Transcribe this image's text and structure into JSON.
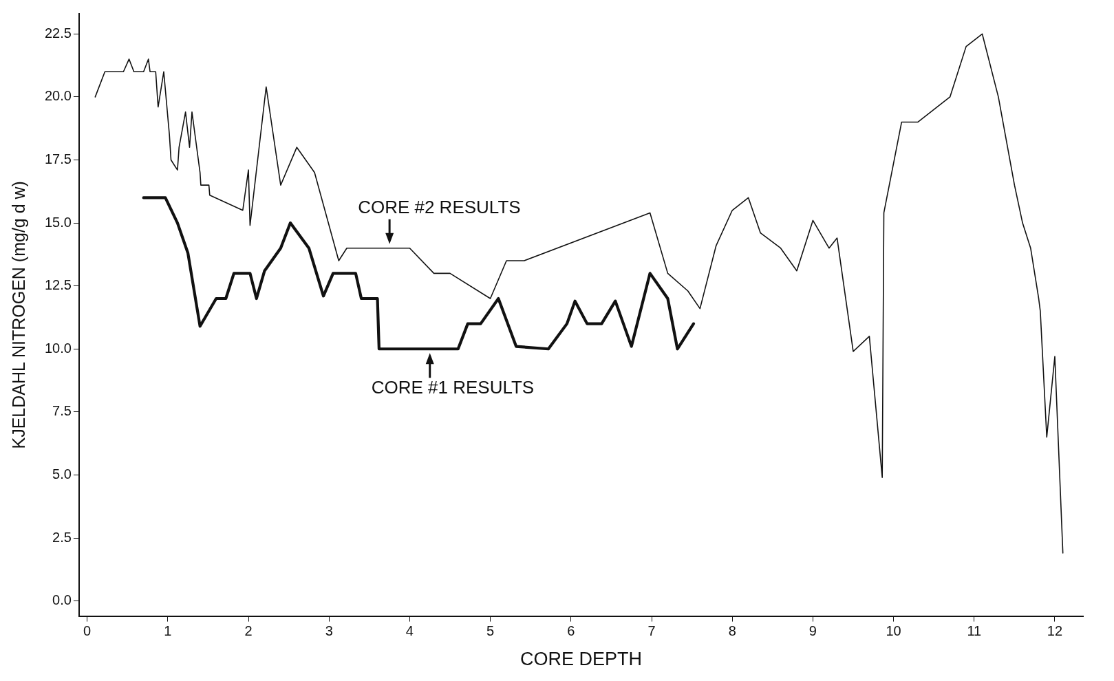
{
  "chart_data": {
    "type": "line",
    "xlabel": "CORE DEPTH",
    "ylabel": "KJELDAHL NITROGEN (mg/g d w)",
    "xlim": [
      -0.1,
      12.35
    ],
    "xticks": [
      0,
      1,
      2,
      3,
      4,
      5,
      6,
      7,
      8,
      9,
      10,
      11,
      12
    ],
    "ylim": [
      -0.6,
      23.3
    ],
    "yticks": [
      {
        "value": 0,
        "label": "0.0"
      },
      2.5,
      {
        "value": 5,
        "label": "5.0"
      },
      7.5,
      {
        "value": 10,
        "label": "10.0"
      },
      12.5,
      {
        "value": 15,
        "label": "15.0"
      },
      17.5,
      {
        "value": 20,
        "label": "20.0"
      },
      22.5
    ],
    "grid": false,
    "legend": false,
    "marker": "none",
    "line_style": "solid",
    "series": [
      {
        "color": "#111111",
        "x": [
          0.1,
          0.22,
          0.45,
          0.52,
          0.58,
          0.7,
          0.76,
          0.78,
          0.85,
          0.88,
          0.95,
          1.02,
          1.04,
          1.12,
          1.14,
          1.22,
          1.27,
          1.3,
          1.4,
          1.41,
          1.51,
          1.52,
          1.93,
          2.0,
          2.02,
          2.22,
          2.4,
          2.6,
          2.82,
          3.12,
          3.22,
          4.0,
          4.3,
          4.5,
          5.0,
          5.2,
          5.42,
          6.98,
          7.2,
          7.45,
          7.6,
          7.8,
          8.0,
          8.2,
          8.35,
          8.6,
          8.8,
          9.0,
          9.2,
          9.3,
          9.5,
          9.7,
          9.86,
          9.88,
          10.1,
          10.3,
          10.7,
          10.9,
          11.1,
          11.3,
          11.5,
          11.6,
          11.7,
          11.8,
          11.82,
          11.9,
          12.0,
          12.1
        ],
        "values": [
          20.0,
          21.0,
          21.0,
          21.5,
          21.0,
          21.0,
          21.5,
          21.0,
          21.0,
          19.6,
          21.0,
          18.5,
          17.5,
          17.1,
          18.0,
          19.4,
          18.0,
          19.4,
          17.0,
          16.5,
          16.5,
          16.1,
          15.5,
          17.1,
          14.9,
          20.4,
          16.5,
          18.0,
          17.0,
          13.5,
          14.0,
          14.0,
          13.0,
          13.0,
          12.0,
          13.5,
          13.5,
          15.4,
          13.0,
          12.3,
          11.6,
          14.1,
          15.5,
          16.0,
          14.6,
          14.0,
          13.1,
          15.1,
          14.0,
          14.4,
          9.9,
          10.5,
          4.9,
          15.4,
          19.0,
          19.0,
          20.0,
          22.0,
          22.5,
          20.0,
          16.5,
          15.0,
          14.0,
          12.0,
          11.5,
          6.5,
          9.7,
          1.9
        ]
      },
      {
        "color": "#111111",
        "x": [
          0.7,
          0.97,
          1.12,
          1.25,
          1.4,
          1.6,
          1.72,
          1.82,
          2.02,
          2.1,
          2.2,
          2.4,
          2.52,
          2.75,
          2.93,
          3.05,
          3.33,
          3.4,
          3.6,
          3.62,
          4.6,
          4.72,
          4.88,
          5.1,
          5.32,
          5.72,
          5.95,
          6.05,
          6.2,
          6.38,
          6.55,
          6.75,
          6.98,
          7.2,
          7.32,
          7.52
        ],
        "values": [
          16.0,
          16.0,
          15.0,
          13.8,
          10.9,
          12.0,
          12.0,
          13.0,
          13.0,
          12.0,
          13.1,
          14.0,
          15.0,
          14.0,
          12.1,
          13.0,
          13.0,
          12.0,
          12.0,
          10.0,
          10.0,
          11.0,
          11.0,
          12.0,
          10.1,
          10.0,
          11.0,
          11.9,
          11.0,
          11.0,
          11.9,
          10.1,
          13.0,
          12.0,
          10.0,
          11.0
        ]
      }
    ],
    "annotations": [
      {
        "text": "CORE #2 RESULTS",
        "x": 3.75,
        "y": 14.0
      },
      {
        "text": "CORE #1 RESULTS",
        "x": 4.25,
        "y": 10.0
      }
    ]
  }
}
